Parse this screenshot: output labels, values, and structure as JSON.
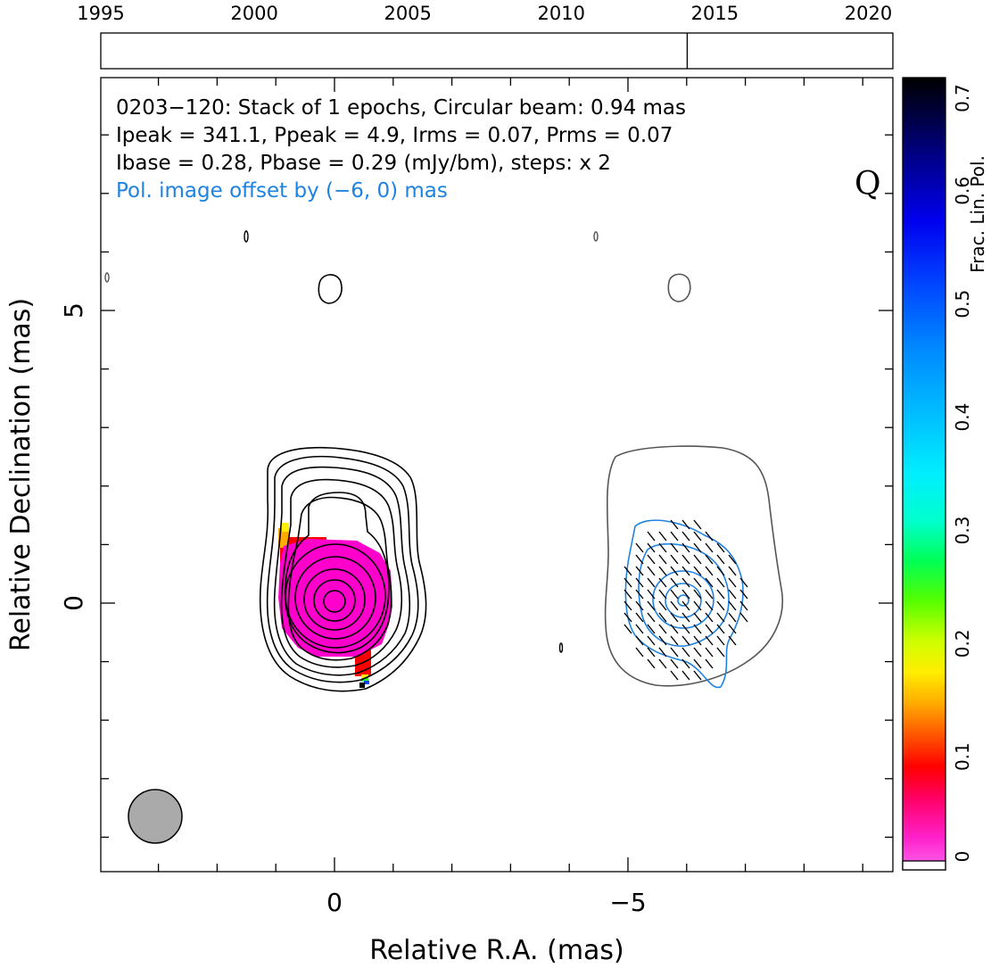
{
  "chart_data": {
    "type": "contour",
    "source_name": "0203-120",
    "annotations": {
      "line1": "0203−120: Stack of 1 epochs, Circular beam: 0.94 mas",
      "line2": "Ipeak = 341.1, Ppeak = 4.9, Irms = 0.07, Prms = 0.07",
      "line3": "Ibase = 0.28, Pbase = 0.29 (mJy/bm), steps: x 2",
      "line4": "Pol. image offset by (−6, 0) mas",
      "line4_color": "#1e82e0",
      "band": "Q"
    },
    "xlabel": "Relative R.A. (mas)",
    "ylabel": "Relative Declination (mas)",
    "xlim": [
      3.9,
      -9.6
    ],
    "ylim": [
      -4.6,
      9.0
    ],
    "xticks": [
      {
        "value": 0,
        "label": "0"
      },
      {
        "value": -5,
        "label": "−5"
      }
    ],
    "yticks": [
      {
        "value": 0,
        "label": "0"
      },
      {
        "value": 5,
        "label": "5"
      }
    ],
    "timeline": {
      "range": [
        1995,
        2020.8
      ],
      "tick_labels": [
        "1995",
        "2000",
        "2005",
        "2010",
        "2015",
        "2020"
      ],
      "tick_years": [
        1995,
        2000,
        2005,
        2010,
        2015,
        2020
      ],
      "epochs": [
        2014.1
      ]
    },
    "colorbar": {
      "label": "Frac. Lin. Pol.",
      "range": [
        0,
        0.7
      ],
      "tick_labels": [
        "0",
        "0.1",
        "0.2",
        "0.3",
        "0.4",
        "0.5",
        "0.6",
        "0.7"
      ],
      "tick_values": [
        0,
        0.1,
        0.2,
        0.3,
        0.4,
        0.5,
        0.6,
        0.7
      ]
    },
    "beam": {
      "diameter_mas": 0.94,
      "color": "#aaaaaa"
    },
    "stokes_i_center": [
      0,
      0
    ],
    "pol_center": [
      -6,
      0
    ],
    "colors": {
      "stokes_i_contour": "#000000",
      "pol_contour": "#1e82e0",
      "outer_contour": "#555555"
    }
  }
}
